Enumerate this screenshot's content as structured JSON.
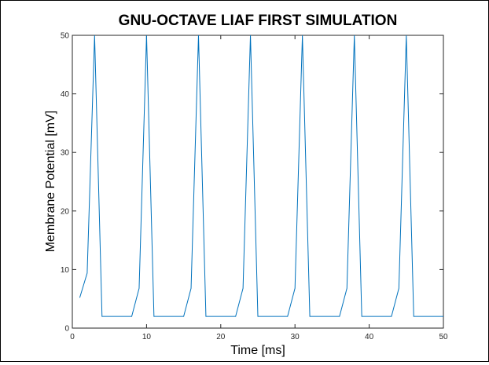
{
  "chart_data": {
    "type": "line",
    "title": "GNU-OCTAVE LIAF FIRST SIMULATION",
    "xlabel": "Time [ms]",
    "ylabel": "Membrane Potential  [mV]",
    "xlim": [
      0,
      50
    ],
    "ylim": [
      0,
      50
    ],
    "x_ticks": [
      0,
      10,
      20,
      30,
      40,
      50
    ],
    "y_ticks": [
      0,
      10,
      20,
      30,
      40,
      50
    ],
    "grid": false,
    "legend": "none",
    "series": [
      {
        "color": "#0072bd",
        "x": [
          1,
          2,
          3,
          4,
          5,
          6,
          7,
          8,
          9,
          10,
          11,
          12,
          13,
          14,
          15,
          16,
          17,
          18,
          19,
          20,
          21,
          22,
          23,
          24,
          25,
          26,
          27,
          28,
          29,
          30,
          31,
          32,
          33,
          34,
          35,
          36,
          37,
          38,
          39,
          40,
          41,
          42,
          43,
          44,
          45,
          46,
          47,
          48,
          49,
          50
        ],
        "y": [
          5.2,
          9.4,
          50,
          2,
          2,
          2,
          2,
          2,
          6.8,
          50,
          2,
          2,
          2,
          2,
          2,
          6.8,
          50,
          2,
          2,
          2,
          2,
          2,
          6.8,
          50,
          2,
          2,
          2,
          2,
          2,
          6.8,
          50,
          2,
          2,
          2,
          2,
          2,
          6.8,
          50,
          2,
          2,
          2,
          2,
          2,
          6.8,
          50,
          2,
          2,
          2,
          2,
          2
        ]
      }
    ]
  }
}
